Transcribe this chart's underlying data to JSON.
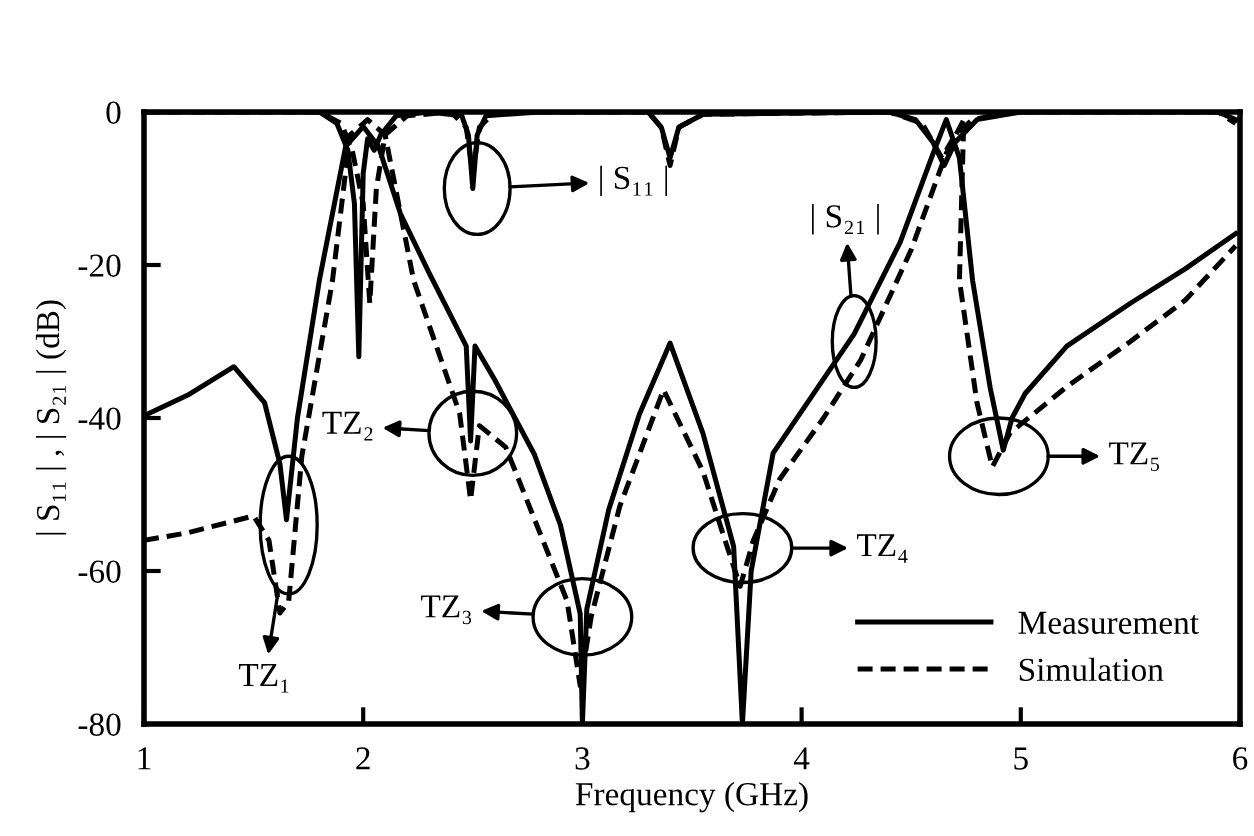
{
  "chart_data": {
    "type": "line",
    "xlabel": "Frequency (GHz)",
    "ylabel": "| S₁₁ | , | S₂₁ | (dB)",
    "xlim": [
      1,
      6
    ],
    "ylim": [
      -80,
      0
    ],
    "xticks": [
      1,
      2,
      3,
      4,
      5,
      6
    ],
    "yticks": [
      -80,
      -60,
      -40,
      -20,
      0
    ],
    "grid": false,
    "legend": "bottom right",
    "marker": "none",
    "series": [
      {
        "name": "Measurement",
        "color": "#000000",
        "line_style": "solid",
        "x": [
          1.0,
          1.2,
          1.41,
          1.55,
          1.62,
          1.65,
          1.7,
          1.8,
          1.92,
          2.0,
          2.07,
          2.17,
          2.3,
          2.47,
          2.49,
          2.51,
          2.6,
          2.78,
          2.9,
          2.99,
          3.0,
          3.02,
          3.12,
          3.26,
          3.4,
          3.55,
          3.69,
          3.73,
          3.77,
          3.87,
          4.05,
          4.24,
          4.45,
          4.6,
          4.66,
          4.72,
          4.78,
          4.86,
          4.92,
          4.96,
          5.02,
          5.21,
          5.5,
          5.75,
          5.98
        ],
        "values": [
          -39.7,
          -37,
          -33.3,
          -38,
          -46,
          -53.3,
          -40,
          -22,
          -4.5,
          -1.9,
          -4.5,
          -13.3,
          -21,
          -30.6,
          -43,
          -30.6,
          -35,
          -44.7,
          -54,
          -65.6,
          -80,
          -65,
          -52,
          -39.5,
          -30.2,
          -42,
          -56.8,
          -80,
          -60,
          -44.6,
          -37,
          -29,
          -17,
          -5.4,
          -1,
          -6,
          -22,
          -36,
          -44.2,
          -40,
          -36.8,
          -30.6,
          -25,
          -20.5,
          -15.9
        ]
      },
      {
        "name": "Simulation",
        "color": "#000000",
        "line_style": "dashed",
        "x": [
          1.0,
          1.2,
          1.5,
          1.57,
          1.62,
          1.66,
          1.72,
          1.86,
          1.94,
          2.02,
          2.1,
          2.23,
          2.44,
          2.49,
          2.53,
          2.65,
          2.93,
          2.99,
          3.04,
          3.17,
          3.37,
          3.55,
          3.66,
          3.72,
          3.78,
          3.9,
          4.1,
          4.27,
          4.5,
          4.66,
          4.74,
          4.72,
          4.8,
          4.87,
          4.95,
          5.21,
          5.5,
          5.75,
          5.98
        ],
        "values": [
          -56,
          -55,
          -52.8,
          -56,
          -65.5,
          -64,
          -45,
          -22,
          -3,
          -1,
          -3,
          -22,
          -39.4,
          -50.7,
          -41,
          -43.8,
          -63.9,
          -75,
          -66,
          -51.6,
          -36.3,
          -47,
          -56.8,
          -62,
          -56,
          -48,
          -40,
          -32.4,
          -18,
          -5.4,
          -1,
          -22,
          -38,
          -46.4,
          -42,
          -35.9,
          -30,
          -24.6,
          -17.5
        ]
      },
      {
        "color": "#000000",
        "line_style": "solid",
        "x": [
          1.0,
          1.8,
          1.88,
          1.93,
          1.96,
          1.98,
          2.0,
          2.02,
          2.05,
          2.08,
          2.15,
          2.3,
          2.45,
          2.48,
          2.5,
          2.52,
          2.56,
          2.8,
          3.3,
          3.36,
          3.4,
          3.44,
          3.55,
          4.4,
          4.52,
          4.6,
          4.65,
          4.7,
          4.8,
          5.0,
          5.9,
          5.98
        ],
        "values": [
          0,
          0,
          -1.5,
          -5,
          -12,
          -32,
          -8,
          -3.5,
          -5,
          -3,
          -0.5,
          0,
          -0.5,
          -3,
          -10,
          -3,
          -0.5,
          0,
          0,
          -2,
          -6,
          -2,
          -0.3,
          0,
          -1,
          -4,
          -7,
          -4,
          -1,
          0,
          0,
          -1
        ]
      },
      {
        "color": "#000000",
        "line_style": "dashed",
        "x": [
          1.0,
          1.8,
          1.9,
          1.95,
          2.0,
          2.03,
          2.06,
          2.1,
          2.2,
          2.4,
          2.47,
          2.5,
          2.53,
          2.6,
          3.3,
          3.36,
          3.4,
          3.44,
          3.55,
          4.4,
          4.55,
          4.64,
          4.7,
          4.78,
          4.9,
          5.0,
          5.9,
          5.98
        ],
        "values": [
          0,
          0,
          -1.5,
          -5,
          -12,
          -25,
          -10,
          -3,
          -0.5,
          0,
          -2,
          -8,
          -2,
          0,
          0,
          -2,
          -7,
          -2,
          -0.3,
          0,
          -1.5,
          -6,
          -3,
          -1,
          -0.3,
          0,
          0,
          -1.5
        ]
      }
    ],
    "annotations": [
      "| S₁₁ |",
      "TZ₁",
      "TZ₂",
      "TZ₃",
      "TZ₄",
      "TZ₅",
      "| S₂₁ |"
    ]
  }
}
